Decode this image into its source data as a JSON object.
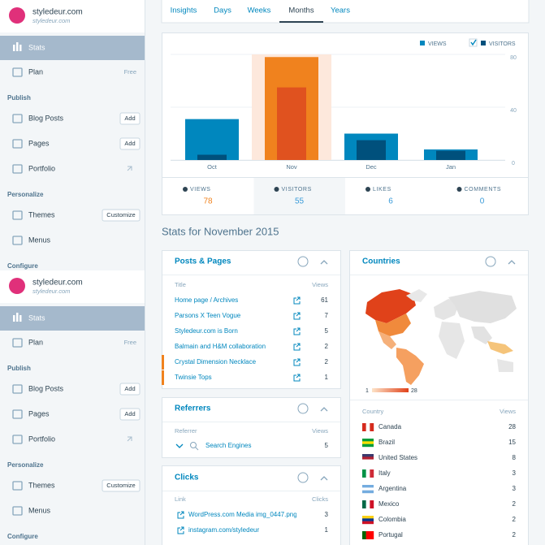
{
  "sidebar": {
    "site_name": "styledeur.com",
    "site_url": "styledeur.com",
    "stats": "Stats",
    "plan": {
      "label": "Plan",
      "badge": "Free"
    },
    "sections": [
      {
        "heading": "Publish",
        "items": [
          {
            "label": "Blog Posts",
            "button": "Add"
          },
          {
            "label": "Pages",
            "button": "Add"
          },
          {
            "label": "Portfolio"
          }
        ]
      },
      {
        "heading": "Personalize",
        "items": [
          {
            "label": "Themes",
            "button": "Customize"
          },
          {
            "label": "Menus"
          }
        ]
      },
      {
        "heading": "Configure"
      }
    ]
  },
  "tabs": [
    "Insights",
    "Days",
    "Weeks",
    "Months",
    "Years"
  ],
  "active_tab": "Months",
  "chart_data": {
    "type": "bar",
    "categories": [
      "Oct",
      "Nov",
      "Dec",
      "Jan"
    ],
    "series": [
      {
        "name": "VIEWS",
        "color": "#0087be",
        "highlight_color": "#f0821e",
        "values": [
          31,
          78,
          20,
          8
        ]
      },
      {
        "name": "VISITORS",
        "color": "#00507c",
        "highlight_color": "#e0521f",
        "values": [
          4,
          55,
          15,
          7
        ]
      }
    ],
    "highlight": "Nov",
    "ylim": [
      0,
      80
    ],
    "yticks": [
      0,
      40,
      80
    ],
    "grid": true
  },
  "summary": [
    {
      "label": "VIEWS",
      "value": 78
    },
    {
      "label": "VISITORS",
      "value": 55
    },
    {
      "label": "LIKES",
      "value": 6
    },
    {
      "label": "COMMENTS",
      "value": 0
    }
  ],
  "period_title": "Stats for November 2015",
  "posts": {
    "title": "Posts & Pages",
    "columns": [
      "Title",
      "Views"
    ],
    "rows": [
      [
        "Home page / Archives",
        61
      ],
      [
        "Parsons X Teen Vogue",
        7
      ],
      [
        "Styledeur.com is Born",
        5
      ],
      [
        "Balmain and H&M collaboration",
        2
      ],
      [
        "Crystal Dimension Necklace",
        2
      ],
      [
        "Twinsie Tops",
        1
      ]
    ]
  },
  "referrers": {
    "title": "Referrers",
    "columns": [
      "Referrer",
      "Views"
    ],
    "rows": [
      [
        "Search Engines",
        5
      ]
    ]
  },
  "clicks": {
    "title": "Clicks",
    "columns": [
      "Link",
      "Clicks"
    ],
    "rows": [
      [
        "WordPress.com Media img_0447.png",
        3
      ],
      [
        "instagram.com/styledeur",
        1
      ]
    ]
  },
  "countries": {
    "title": "Countries",
    "legend_min": 1,
    "legend_max": 28,
    "columns": [
      "Country",
      "Views"
    ],
    "rows": [
      [
        "Canada",
        28
      ],
      [
        "Brazil",
        15
      ],
      [
        "United States",
        8
      ],
      [
        "Italy",
        3
      ],
      [
        "Argentina",
        3
      ],
      [
        "Mexico",
        2
      ],
      [
        "Colombia",
        2
      ],
      [
        "Portugal",
        2
      ]
    ]
  }
}
